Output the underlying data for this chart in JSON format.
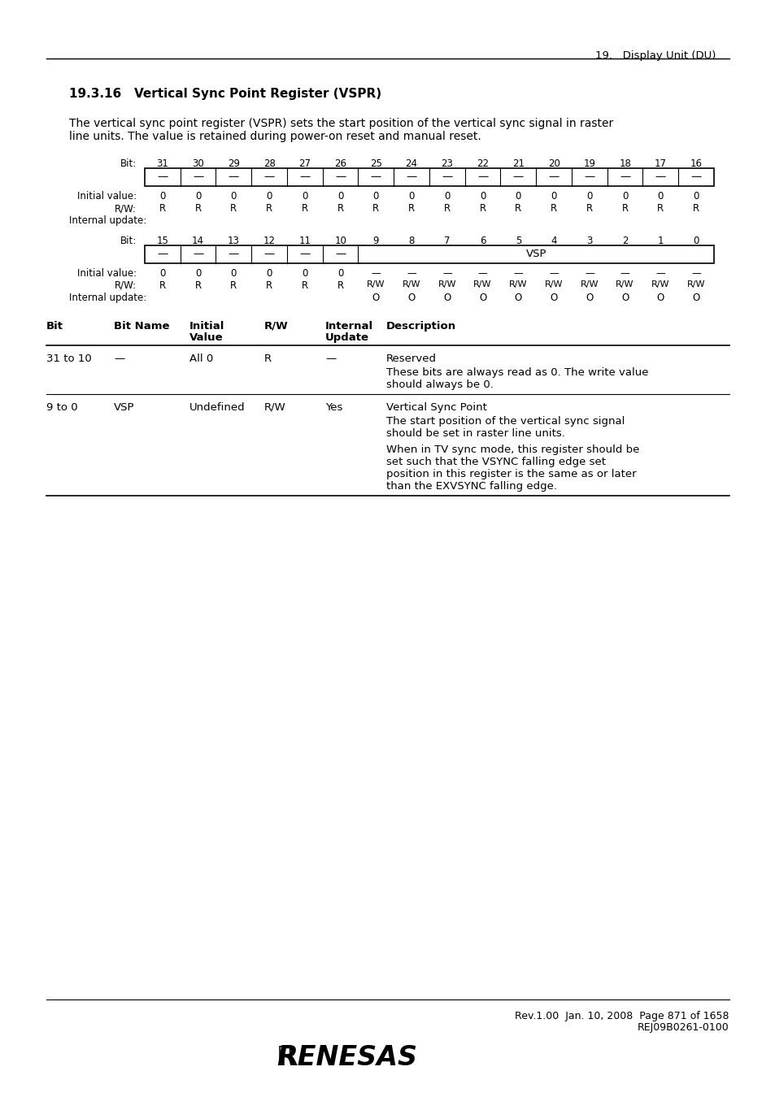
{
  "page_header_right": "19.   Display Unit (DU)",
  "section_title": "19.3.16   Vertical Sync Point Register (VSPR)",
  "intro_line1": "The vertical sync point register (VSPR) sets the start position of the vertical sync signal in raster",
  "intro_line2": "line units. The value is retained during power-on reset and manual reset.",
  "reg_upper_bits": [
    31,
    30,
    29,
    28,
    27,
    26,
    25,
    24,
    23,
    22,
    21,
    20,
    19,
    18,
    17,
    16
  ],
  "reg_upper_labels": [
    "—",
    "—",
    "—",
    "—",
    "—",
    "—",
    "—",
    "—",
    "—",
    "—",
    "—",
    "—",
    "—",
    "—",
    "—",
    "—"
  ],
  "reg_upper_init": [
    "0",
    "0",
    "0",
    "0",
    "0",
    "0",
    "0",
    "0",
    "0",
    "0",
    "0",
    "0",
    "0",
    "0",
    "0",
    "0"
  ],
  "reg_upper_rw": [
    "R",
    "R",
    "R",
    "R",
    "R",
    "R",
    "R",
    "R",
    "R",
    "R",
    "R",
    "R",
    "R",
    "R",
    "R",
    "R"
  ],
  "reg_lower_bits": [
    15,
    14,
    13,
    12,
    11,
    10,
    9,
    8,
    7,
    6,
    5,
    4,
    3,
    2,
    1,
    0
  ],
  "reg_lower_labels_left": [
    "—",
    "—",
    "—",
    "—",
    "—",
    "—"
  ],
  "reg_lower_label_vsp": "VSP",
  "reg_lower_init_left": [
    "0",
    "0",
    "0",
    "0",
    "0",
    "0"
  ],
  "reg_lower_init_right": [
    "—",
    "—",
    "—",
    "—",
    "—",
    "—",
    "—",
    "—",
    "—",
    "—"
  ],
  "reg_lower_rw_left": [
    "R",
    "R",
    "R",
    "R",
    "R",
    "R"
  ],
  "reg_lower_rw_right": [
    "R/W",
    "R/W",
    "R/W",
    "R/W",
    "R/W",
    "R/W",
    "R/W",
    "R/W",
    "R/W",
    "R/W"
  ],
  "reg_lower_update_right": [
    "O",
    "O",
    "O",
    "O",
    "O",
    "O",
    "O",
    "O",
    "O",
    "O"
  ],
  "footer_line1": "Rev.1.00  Jan. 10, 2008  Page 871 of 1658",
  "footer_line2": "REJ09B0261-0100",
  "bg_color": "#ffffff"
}
